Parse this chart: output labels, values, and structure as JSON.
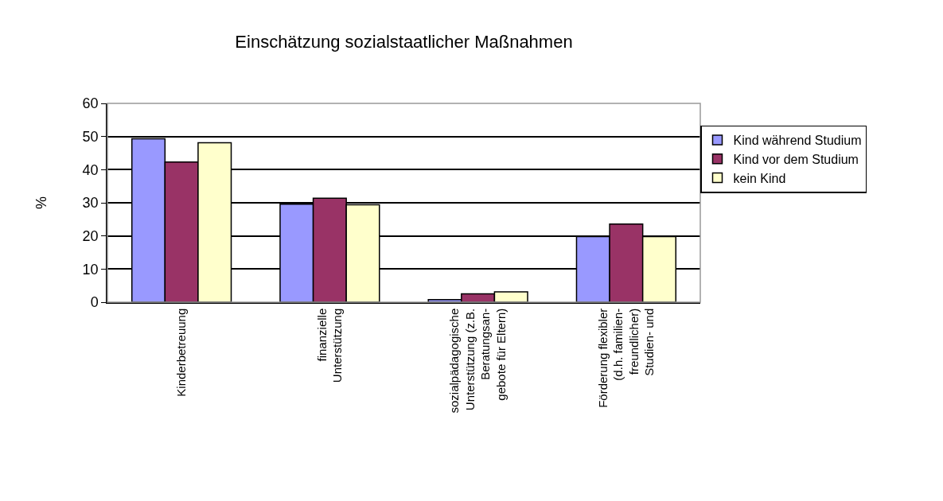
{
  "chart_data": {
    "type": "bar",
    "title": "Einschätzung sozialstaatlicher Maßnahmen",
    "ylabel": "%",
    "categories": [
      "Kinderbetreuung",
      "finanzielle\nUnterstützung",
      "sozialpädagogische\nUnterstützung (z.B.\nBeratungsan-\ngebote für Eltern)",
      "Förderung flexibler\n(d.h. familien-\nfreundlicher)\nStudien- und"
    ],
    "series": [
      {
        "name": "Kind während Studium",
        "color": "#9999ff",
        "values": [
          49.3,
          29.6,
          0.8,
          19.8
        ]
      },
      {
        "name": "Kind vor dem Studium",
        "color": "#993366",
        "values": [
          42.3,
          31.4,
          2.5,
          23.6
        ]
      },
      {
        "name": "kein Kind",
        "color": "#ffffcc",
        "values": [
          48.1,
          29.4,
          3.1,
          19.8
        ]
      }
    ],
    "ylim": [
      0,
      60
    ],
    "yticks": [
      0,
      10,
      20,
      30,
      40,
      50,
      60
    ],
    "grid": "y",
    "legend": "right"
  }
}
